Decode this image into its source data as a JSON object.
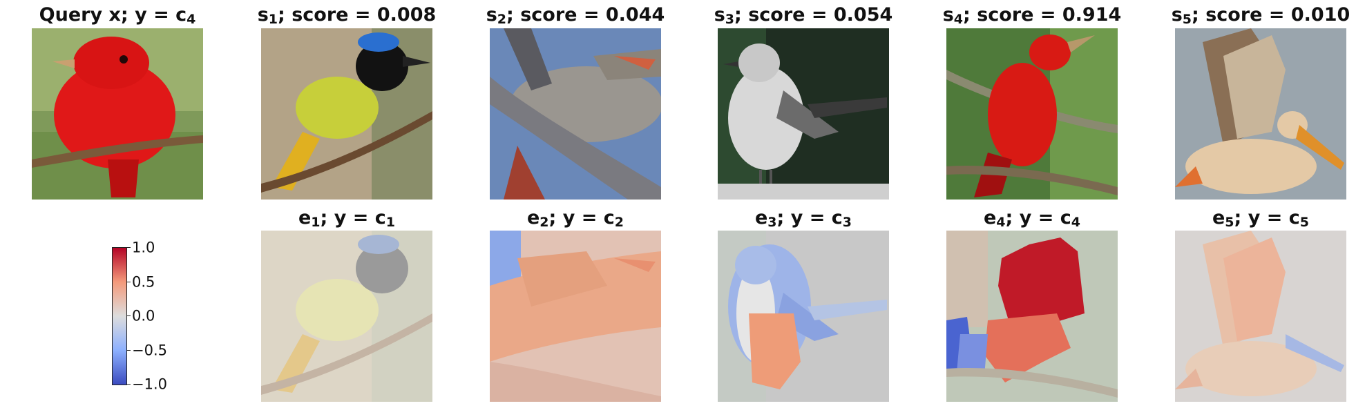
{
  "query": {
    "label": "Query x; y = ",
    "class": "c",
    "class_sub": "4"
  },
  "supports": [
    {
      "sym": "s",
      "sub": "1",
      "score_label": "; score = 0.008"
    },
    {
      "sym": "s",
      "sub": "2",
      "score_label": "; score = 0.044"
    },
    {
      "sym": "s",
      "sub": "3",
      "score_label": "; score = 0.054"
    },
    {
      "sym": "s",
      "sub": "4",
      "score_label": "; score = 0.914"
    },
    {
      "sym": "s",
      "sub": "5",
      "score_label": "; score = 0.010"
    }
  ],
  "explanations": [
    {
      "sym": "e",
      "sub": "1",
      "mid": "; y = ",
      "cls": "c",
      "cls_sub": "1"
    },
    {
      "sym": "e",
      "sub": "2",
      "mid": "; y = ",
      "cls": "c",
      "cls_sub": "2"
    },
    {
      "sym": "e",
      "sub": "3",
      "mid": "; y = ",
      "cls": "c",
      "cls_sub": "3"
    },
    {
      "sym": "e",
      "sub": "4",
      "mid": "; y = ",
      "cls": "c",
      "cls_sub": "4"
    },
    {
      "sym": "e",
      "sub": "5",
      "mid": "; y = ",
      "cls": "c",
      "cls_sub": "5"
    }
  ],
  "colorbar": {
    "ticks": [
      "1.0",
      "0.5",
      "0.0",
      "−0.5",
      "−1.0"
    ],
    "low_color": "#3b4cc0",
    "mid_color": "#dddddd",
    "high_color": "#b40426"
  }
}
